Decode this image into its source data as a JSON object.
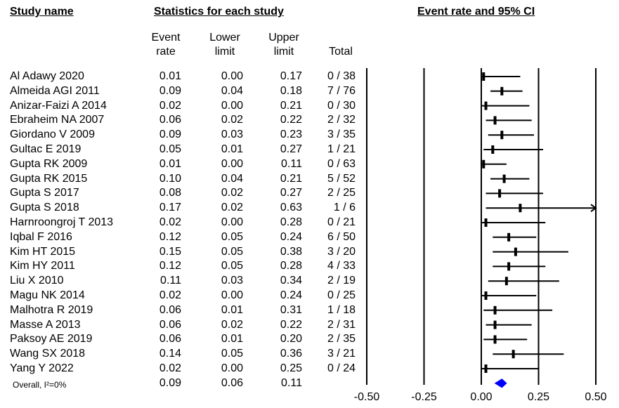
{
  "headers": {
    "study_name": "Study name",
    "statistics": "Statistics for each study",
    "forest_title": "Event rate and 95% CI",
    "event_rate": "Event\nrate",
    "lower_limit": "Lower\nlimit",
    "upper_limit": "Upper\nlimit",
    "total": "Total"
  },
  "studies": [
    {
      "name": "Al Adawy 2020",
      "rate": "0.01",
      "lower": "0.00",
      "upper": "0.17",
      "total": "0 / 38"
    },
    {
      "name": "Almeida AGI 2011",
      "rate": "0.09",
      "lower": "0.04",
      "upper": "0.18",
      "total": "7 / 76"
    },
    {
      "name": "Anizar-Faizi A 2014",
      "rate": "0.02",
      "lower": "0.00",
      "upper": "0.21",
      "total": "0 / 30"
    },
    {
      "name": "Ebraheim NA 2007",
      "rate": "0.06",
      "lower": "0.02",
      "upper": "0.22",
      "total": "2 / 32"
    },
    {
      "name": "Giordano V 2009",
      "rate": "0.09",
      "lower": "0.03",
      "upper": "0.23",
      "total": "3 / 35"
    },
    {
      "name": "Gultac E 2019",
      "rate": "0.05",
      "lower": "0.01",
      "upper": "0.27",
      "total": "1 / 21"
    },
    {
      "name": "Gupta RK 2009",
      "rate": "0.01",
      "lower": "0.00",
      "upper": "0.11",
      "total": "0 / 63"
    },
    {
      "name": "Gupta RK 2015",
      "rate": "0.10",
      "lower": "0.04",
      "upper": "0.21",
      "total": "5 / 52"
    },
    {
      "name": "Gupta S 2017",
      "rate": "0.08",
      "lower": "0.02",
      "upper": "0.27",
      "total": "2 / 25"
    },
    {
      "name": "Gupta S 2018",
      "rate": "0.17",
      "lower": "0.02",
      "upper": "0.63",
      "total": "1 / 6"
    },
    {
      "name": "Harnroongroj T 2013",
      "rate": "0.02",
      "lower": "0.00",
      "upper": "0.28",
      "total": "0 / 21"
    },
    {
      "name": "Iqbal F 2016",
      "rate": "0.12",
      "lower": "0.05",
      "upper": "0.24",
      "total": "6 / 50"
    },
    {
      "name": "Kim HT 2015",
      "rate": "0.15",
      "lower": "0.05",
      "upper": "0.38",
      "total": "3 / 20"
    },
    {
      "name": "Kim HY 2011",
      "rate": "0.12",
      "lower": "0.05",
      "upper": "0.28",
      "total": "4 / 33"
    },
    {
      "name": "Liu X 2010",
      "rate": "0.11",
      "lower": "0.03",
      "upper": "0.34",
      "total": "2 / 19"
    },
    {
      "name": "Magu NK 2014",
      "rate": "0.02",
      "lower": "0.00",
      "upper": "0.24",
      "total": "0 / 25"
    },
    {
      "name": "Malhotra R 2019",
      "rate": "0.06",
      "lower": "0.01",
      "upper": "0.31",
      "total": "1 / 18"
    },
    {
      "name": "Masse A 2013",
      "rate": "0.06",
      "lower": "0.02",
      "upper": "0.22",
      "total": "2 / 31"
    },
    {
      "name": "Paksoy AE 2019",
      "rate": "0.06",
      "lower": "0.01",
      "upper": "0.20",
      "total": "2 / 35"
    },
    {
      "name": "Wang SX 2018",
      "rate": "0.14",
      "lower": "0.05",
      "upper": "0.36",
      "total": "3 / 21"
    },
    {
      "name": "Yang Y 2022",
      "rate": "0.02",
      "lower": "0.00",
      "upper": "0.25",
      "total": "0 / 24"
    }
  ],
  "overall": {
    "name": "Overall, I²=0%",
    "rate": "0.09",
    "lower": "0.06",
    "upper": "0.11"
  },
  "chart_data": {
    "type": "forest",
    "title": "Event rate and 95% CI",
    "xlim": [
      -0.5,
      0.5
    ],
    "xticks": [
      -0.5,
      -0.25,
      0.0,
      0.25,
      0.5
    ],
    "xtick_labels": [
      "-0.50",
      "-0.25",
      "0.00",
      "0.25",
      "0.50"
    ],
    "grid": false,
    "summary_color": "#0000ff",
    "estimates": [
      {
        "study": "Al Adawy 2020",
        "x": 0.01,
        "lo": 0.0,
        "hi": 0.17
      },
      {
        "study": "Almeida AGI 2011",
        "x": 0.09,
        "lo": 0.04,
        "hi": 0.18
      },
      {
        "study": "Anizar-Faizi A 2014",
        "x": 0.02,
        "lo": 0.0,
        "hi": 0.21
      },
      {
        "study": "Ebraheim NA 2007",
        "x": 0.06,
        "lo": 0.02,
        "hi": 0.22
      },
      {
        "study": "Giordano V 2009",
        "x": 0.09,
        "lo": 0.03,
        "hi": 0.23
      },
      {
        "study": "Gultac E 2019",
        "x": 0.05,
        "lo": 0.01,
        "hi": 0.27
      },
      {
        "study": "Gupta RK 2009",
        "x": 0.01,
        "lo": 0.0,
        "hi": 0.11
      },
      {
        "study": "Gupta RK 2015",
        "x": 0.1,
        "lo": 0.04,
        "hi": 0.21
      },
      {
        "study": "Gupta S 2017",
        "x": 0.08,
        "lo": 0.02,
        "hi": 0.27
      },
      {
        "study": "Gupta S 2018",
        "x": 0.17,
        "lo": 0.02,
        "hi": 0.63
      },
      {
        "study": "Harnroongroj T 2013",
        "x": 0.02,
        "lo": 0.0,
        "hi": 0.28
      },
      {
        "study": "Iqbal F 2016",
        "x": 0.12,
        "lo": 0.05,
        "hi": 0.24
      },
      {
        "study": "Kim HT 2015",
        "x": 0.15,
        "lo": 0.05,
        "hi": 0.38
      },
      {
        "study": "Kim HY 2011",
        "x": 0.12,
        "lo": 0.05,
        "hi": 0.28
      },
      {
        "study": "Liu X 2010",
        "x": 0.11,
        "lo": 0.03,
        "hi": 0.34
      },
      {
        "study": "Magu NK 2014",
        "x": 0.02,
        "lo": 0.0,
        "hi": 0.24
      },
      {
        "study": "Malhotra R 2019",
        "x": 0.06,
        "lo": 0.01,
        "hi": 0.31
      },
      {
        "study": "Masse A 2013",
        "x": 0.06,
        "lo": 0.02,
        "hi": 0.22
      },
      {
        "study": "Paksoy AE 2019",
        "x": 0.06,
        "lo": 0.01,
        "hi": 0.2
      },
      {
        "study": "Wang SX 2018",
        "x": 0.14,
        "lo": 0.05,
        "hi": 0.36
      },
      {
        "study": "Yang Y 2022",
        "x": 0.02,
        "lo": 0.0,
        "hi": 0.25
      }
    ],
    "summary": {
      "x": 0.09,
      "lo": 0.06,
      "hi": 0.11
    }
  }
}
